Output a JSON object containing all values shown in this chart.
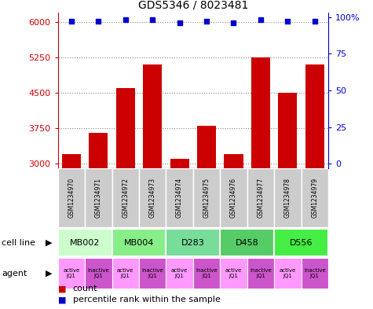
{
  "title": "GDS5346 / 8023481",
  "samples": [
    "GSM1234970",
    "GSM1234971",
    "GSM1234972",
    "GSM1234973",
    "GSM1234974",
    "GSM1234975",
    "GSM1234976",
    "GSM1234977",
    "GSM1234978",
    "GSM1234979"
  ],
  "counts": [
    3200,
    3650,
    4600,
    5100,
    3100,
    3800,
    3200,
    5250,
    4500,
    5100
  ],
  "percentiles": [
    97,
    97,
    98,
    98,
    96,
    97,
    96,
    98,
    97,
    97
  ],
  "cell_lines": [
    {
      "label": "MB002",
      "start": 0,
      "end": 2,
      "color": "#ccffcc"
    },
    {
      "label": "MB004",
      "start": 2,
      "end": 4,
      "color": "#88ee88"
    },
    {
      "label": "D283",
      "start": 4,
      "end": 6,
      "color": "#77dd99"
    },
    {
      "label": "D458",
      "start": 6,
      "end": 8,
      "color": "#55cc66"
    },
    {
      "label": "D556",
      "start": 8,
      "end": 10,
      "color": "#44ee44"
    }
  ],
  "agents": [
    "active\nJQ1",
    "inactive\nJQ1",
    "active\nJQ1",
    "inactive\nJQ1",
    "active\nJQ1",
    "inactive\nJQ1",
    "active\nJQ1",
    "inactive\nJQ1",
    "active\nJQ1",
    "inactive\nJQ1"
  ],
  "agent_color_active": "#ff99ff",
  "agent_color_inactive": "#cc55cc",
  "bar_color": "#cc0000",
  "dot_color": "#0000cc",
  "ylim_left": [
    2900,
    6200
  ],
  "ylim_right": [
    -3.2,
    103.2
  ],
  "yticks_left": [
    3000,
    3750,
    4500,
    5250,
    6000
  ],
  "yticks_right": [
    0,
    25,
    50,
    75,
    100
  ],
  "sample_box_color": "#cccccc",
  "background_color": "#ffffff",
  "grid_color": "#888888",
  "n": 10
}
